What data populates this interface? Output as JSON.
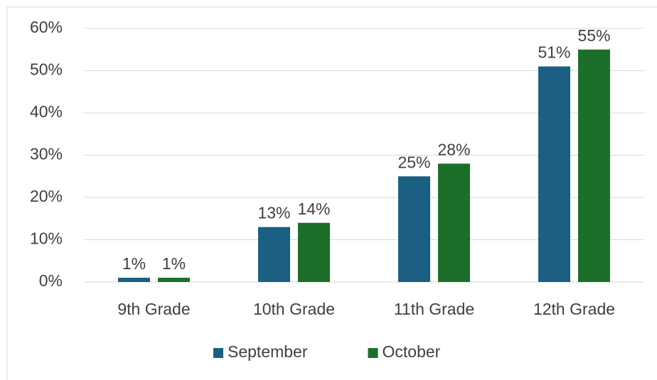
{
  "chart_data": {
    "type": "bar",
    "categories": [
      "9th Grade",
      "10th Grade",
      "11th Grade",
      "12th Grade"
    ],
    "series": [
      {
        "name": "September",
        "color": "#1b5f82",
        "values": [
          1,
          13,
          25,
          51
        ],
        "value_labels": [
          "1%",
          "13%",
          "25%",
          "51%"
        ]
      },
      {
        "name": "October",
        "color": "#1b6f2a",
        "values": [
          1,
          14,
          28,
          55
        ],
        "value_labels": [
          "1%",
          "14%",
          "28%",
          "55%"
        ]
      }
    ],
    "ylim": [
      0,
      60
    ],
    "yticks": [
      {
        "value": 0,
        "label": "0%"
      },
      {
        "value": 10,
        "label": "10%"
      },
      {
        "value": 20,
        "label": "20%"
      },
      {
        "value": 30,
        "label": "30%"
      },
      {
        "value": 40,
        "label": "40%"
      },
      {
        "value": 50,
        "label": "50%"
      },
      {
        "value": 60,
        "label": "60%"
      }
    ],
    "grid": true,
    "legend": "bottom"
  }
}
